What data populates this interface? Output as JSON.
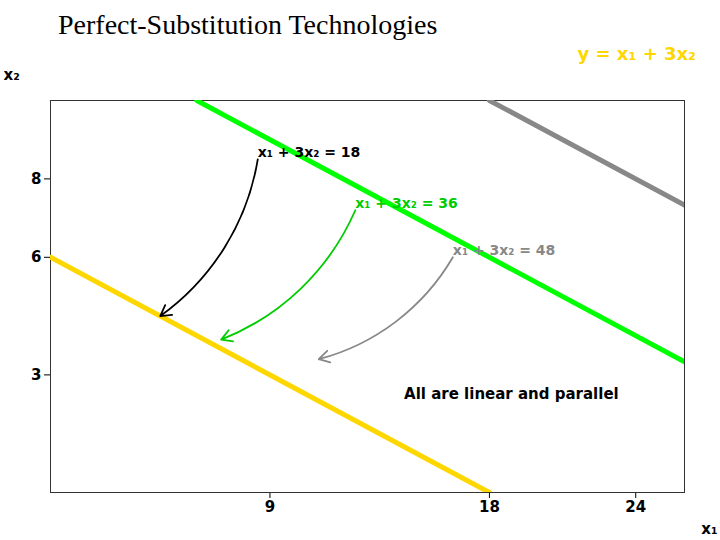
{
  "chart_data": {
    "type": "line",
    "title": "Perfect-Substitution Technologies",
    "title_color": "#000000",
    "subtitle": "y = x₁ + 3x₂",
    "subtitle_color": "#FFD700",
    "xlabel": "x₁",
    "ylabel": "x₂",
    "xlim": [
      0,
      26
    ],
    "ylim": [
      0,
      10
    ],
    "xticks": [
      9,
      18,
      24
    ],
    "yticks": [
      3,
      6,
      8
    ],
    "grid": false,
    "series": [
      {
        "color": "#FFD700",
        "x": [
          0,
          18
        ],
        "values": [
          6,
          0
        ]
      },
      {
        "color": "#00FF00",
        "x": [
          6,
          26
        ],
        "values": [
          10,
          3.3333333333333335
        ]
      },
      {
        "color": "#888888",
        "x": [
          18,
          26
        ],
        "values": [
          10,
          7.333333333333333
        ]
      }
    ],
    "annotations": [
      {
        "text": "x₁ + 3x₂ = 18",
        "x": 4.5,
        "y": 4.5,
        "xytext": [
          8.5,
          8.5
        ],
        "color": "#000000"
      },
      {
        "text": "x₁ + 3x₂ = 36",
        "x": 7.0,
        "y": 3.9,
        "xytext": [
          12.5,
          7.2
        ],
        "color": "#00CC00"
      },
      {
        "text": "x₁ + 3x₂ = 48",
        "x": 11.0,
        "y": 3.4,
        "xytext": [
          16.5,
          6.0
        ],
        "color": "#888888"
      },
      {
        "text": "All are linear and parallel",
        "x": 14.5,
        "y": 2.5,
        "color": "#000000"
      }
    ]
  }
}
